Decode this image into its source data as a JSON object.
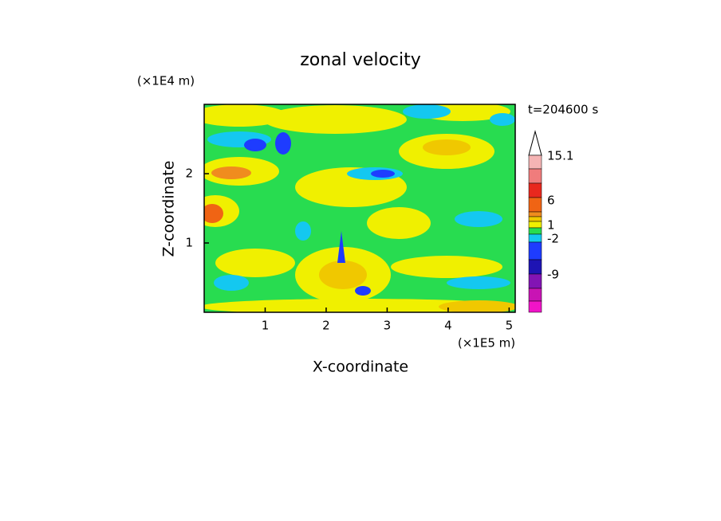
{
  "chart_data": {
    "type": "contour",
    "title": "zonal velocity",
    "x_label": "X-coordinate",
    "y_label": "Z-coordinate",
    "x_unit": "(×1E5 m)",
    "y_unit": "(×1E4 m)",
    "time_label": "t=204600 s",
    "xlim": [
      0,
      5.1
    ],
    "xticks": [
      1,
      2,
      3,
      4,
      5
    ],
    "ylim": [
      0,
      3
    ],
    "yticks": [
      1,
      2
    ],
    "colorbar": {
      "colors": [
        "#ffffff",
        "#f5b4b4",
        "#f07c7c",
        "#e8281e",
        "#f06414",
        "#f08c1e",
        "#f0c800",
        "#f0f000",
        "#28dc50",
        "#14c8f0",
        "#1e3cff",
        "#1e14b4",
        "#8214b4",
        "#c814b4",
        "#f014c8"
      ],
      "ticks": [
        15.1,
        6,
        1,
        -2,
        -9
      ]
    }
  }
}
